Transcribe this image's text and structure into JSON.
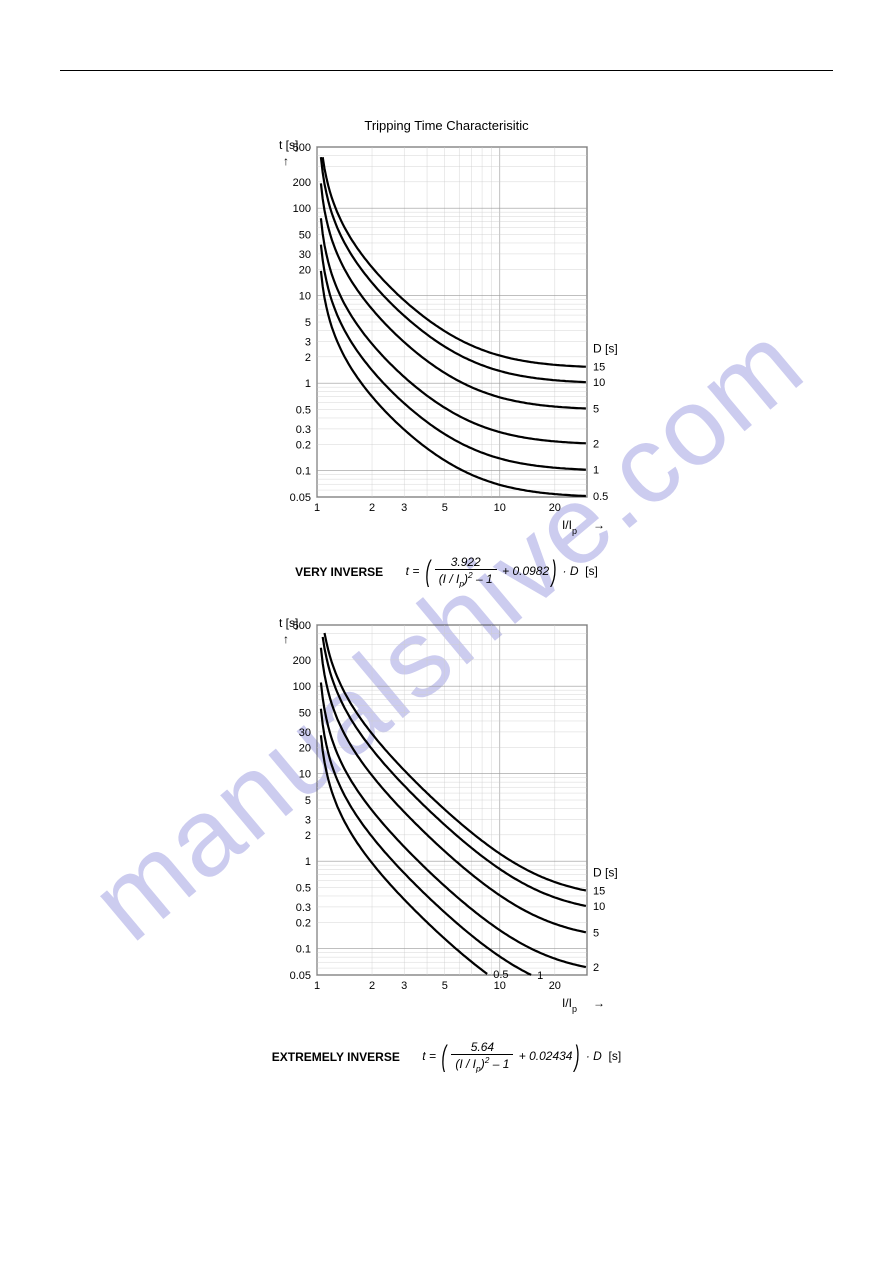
{
  "page": {
    "bg": "#ffffff",
    "rule_color": "#000000"
  },
  "watermark": {
    "text": "manualshive.com",
    "color": "#9a9ae0",
    "opacity": 0.5
  },
  "chart1": {
    "type": "line-loglog",
    "title": "Tripping Time Characterisitic",
    "y_label": "t [s]",
    "x_label": "I/I",
    "x_label_sub": "p",
    "d_label": "D [s]",
    "xlim": [
      1,
      30
    ],
    "ylim": [
      0.05,
      500
    ],
    "x_ticks": [
      1,
      2,
      3,
      5,
      10,
      20
    ],
    "y_ticks": [
      0.05,
      0.1,
      0.2,
      0.3,
      0.5,
      1,
      2,
      3,
      5,
      10,
      20,
      30,
      50,
      100,
      200,
      500
    ],
    "series_D": [
      0.5,
      1,
      2,
      5,
      10,
      15
    ],
    "series_labels": [
      "0.5",
      "1",
      "2",
      "5",
      "10",
      "15"
    ],
    "curve_color": "#000000",
    "curve_width": 2.2,
    "grid_color": "#999999",
    "bg": "#ffffff",
    "formula_name": "VERY  INVERSE",
    "formula_A": "3.922",
    "formula_B": "0.0982",
    "formula_exp": "2"
  },
  "chart2": {
    "type": "line-loglog",
    "title": "",
    "y_label": "t [s]",
    "x_label": "I/I",
    "x_label_sub": "p",
    "d_label": "D [s]",
    "xlim": [
      1,
      30
    ],
    "ylim": [
      0.05,
      500
    ],
    "x_ticks": [
      1,
      2,
      3,
      5,
      10,
      20
    ],
    "y_ticks": [
      0.05,
      0.1,
      0.2,
      0.3,
      0.5,
      1,
      2,
      3,
      5,
      10,
      20,
      30,
      50,
      100,
      200,
      500
    ],
    "series_D": [
      0.5,
      1,
      2,
      5,
      10,
      15
    ],
    "series_labels": [
      "0.5",
      "1",
      "2",
      "5",
      "10",
      "15"
    ],
    "curve_color": "#000000",
    "curve_width": 2.2,
    "grid_color": "#999999",
    "bg": "#ffffff",
    "formula_name": "EXTREMELY  INVERSE",
    "formula_A": "5.64",
    "formula_B": "0.02434",
    "formula_exp": "2"
  },
  "formula_text": {
    "t": "t",
    "eq": "=",
    "plus": "+",
    "dot": "·",
    "D": "D",
    "s": "[s]",
    "Iratio": "(I / I",
    "p": "p",
    ")": ")",
    "minus1": "– 1"
  }
}
